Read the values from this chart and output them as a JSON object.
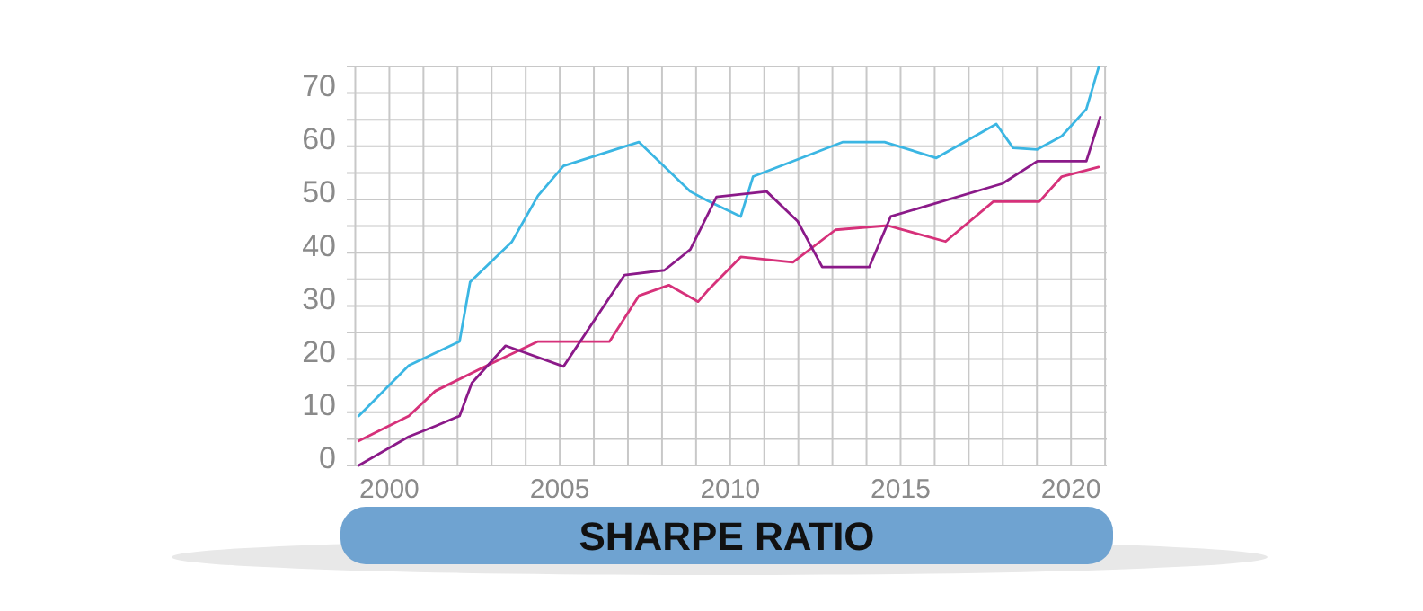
{
  "chart_data": {
    "type": "line",
    "title": "SHARPE RATIO",
    "xlim": [
      1998.75,
      2021.05
    ],
    "ylim": [
      0,
      75
    ],
    "xticks": [
      {
        "value": 1999,
        "label": null
      },
      2000,
      {
        "value": 2001,
        "label": null
      },
      {
        "value": 2002,
        "label": null
      },
      {
        "value": 2003,
        "label": null
      },
      {
        "value": 2004,
        "label": null
      },
      2005,
      {
        "value": 2006,
        "label": null
      },
      {
        "value": 2007,
        "label": null
      },
      {
        "value": 2008,
        "label": null
      },
      {
        "value": 2009,
        "label": null
      },
      2010,
      {
        "value": 2011,
        "label": null
      },
      {
        "value": 2012,
        "label": null
      },
      {
        "value": 2013,
        "label": null
      },
      {
        "value": 2014,
        "label": null
      },
      2015,
      {
        "value": 2016,
        "label": null
      },
      {
        "value": 2017,
        "label": null
      },
      {
        "value": 2018,
        "label": null
      },
      {
        "value": 2019,
        "label": null
      },
      2020,
      {
        "value": 2021,
        "label": null
      }
    ],
    "yticks": [
      0,
      {
        "value": 5,
        "label": null
      },
      10,
      {
        "value": 15,
        "label": null
      },
      20,
      {
        "value": 25,
        "label": null
      },
      30,
      {
        "value": 35,
        "label": null
      },
      40,
      {
        "value": 45,
        "label": null
      },
      50,
      {
        "value": 55,
        "label": null
      },
      60,
      {
        "value": 65,
        "label": null
      },
      70,
      {
        "value": 75,
        "label": null
      }
    ],
    "grid": true,
    "marker": "none",
    "line_style": "solid",
    "series": [
      {
        "color": "#3bb6e3",
        "x": [
          1999.1,
          2000.57,
          2002.06,
          2002.37,
          2003.59,
          2004.36,
          2005.11,
          2007.32,
          2008.83,
          2009.33,
          2010.31,
          2010.67,
          2013.31,
          2014.53,
          2016.05,
          2017.81,
          2018.3,
          2019.01,
          2019.73,
          2020.45,
          2020.81
        ],
        "values": [
          9.3,
          18.8,
          23.3,
          34.5,
          42,
          50.7,
          56.3,
          60.8,
          51.5,
          49.8,
          46.8,
          54.3,
          60.8,
          60.8,
          57.8,
          64.2,
          59.7,
          59.4,
          61.9,
          67,
          74.8
        ]
      },
      {
        "color": "#d6317a",
        "x": [
          1999.1,
          2000.57,
          2001.35,
          2002.87,
          2004.36,
          2006.46,
          2007.32,
          2008.2,
          2009.06,
          2009.33,
          2010.31,
          2011.84,
          2013.09,
          2014.62,
          2016.32,
          2017.72,
          2019.07,
          2019.73,
          2020.81
        ],
        "values": [
          4.6,
          9.3,
          14,
          18.8,
          23.3,
          23.3,
          31.9,
          33.9,
          30.8,
          32.8,
          39.2,
          38.2,
          44.3,
          45.1,
          42.1,
          49.6,
          49.6,
          54.3,
          56.1
        ]
      },
      {
        "color": "#8b1a89",
        "x": [
          1999.1,
          2000.57,
          2001.35,
          2002.06,
          2002.42,
          2003.41,
          2005.11,
          2006.9,
          2008.07,
          2008.83,
          2009.6,
          2011.07,
          2011.98,
          2012.7,
          2014.08,
          2014.71,
          2017.99,
          2019.01,
          2020.45,
          2020.86
        ],
        "values": [
          0,
          5.4,
          7.4,
          9.3,
          15.5,
          22.5,
          18.6,
          35.8,
          36.7,
          40.6,
          50.5,
          51.5,
          45.9,
          37.3,
          37.3,
          46.8,
          53,
          57.2,
          57.2,
          65.5
        ]
      }
    ]
  }
}
